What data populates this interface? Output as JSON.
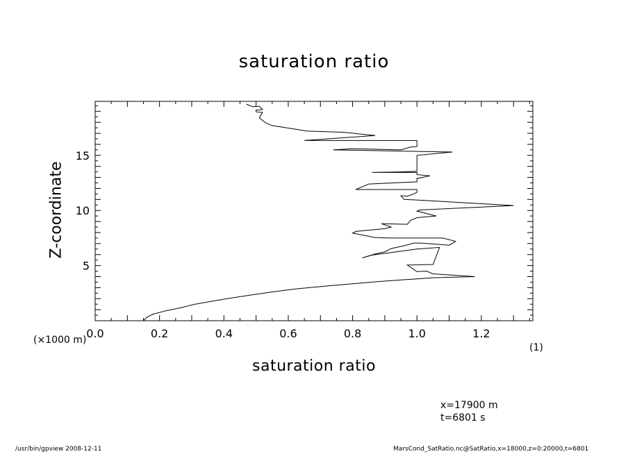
{
  "chart_data": {
    "type": "line",
    "title": "saturation ratio",
    "xlabel": "saturation ratio",
    "ylabel": "Z-coordinate",
    "x_unit": "(1)",
    "y_unit": "(×1000 m)",
    "xlim": [
      0.0,
      1.36
    ],
    "ylim": [
      0.0,
      19.9
    ],
    "x_ticks": [
      0.0,
      0.2,
      0.4,
      0.6,
      0.8,
      1.0,
      1.2
    ],
    "x_tick_labels": [
      "0.0",
      "0.2",
      "0.4",
      "0.6",
      "0.8",
      "1.0",
      "1.2"
    ],
    "y_ticks": [
      5,
      10,
      15
    ],
    "y_tick_labels": [
      "5",
      "10",
      "15"
    ],
    "grid": false,
    "series": [
      {
        "x": [
          0.15,
          0.16,
          0.18,
          0.22,
          0.27,
          0.31,
          0.37,
          0.43,
          0.5,
          0.56,
          0.63,
          0.72,
          0.8,
          0.88,
          0.95,
          1.0,
          1.05,
          1.18,
          1.05,
          1.03,
          1.0,
          0.99,
          0.98,
          0.97,
          1.05,
          1.07,
          1.0,
          0.86,
          0.83,
          0.87,
          0.9,
          0.92,
          0.96,
          0.99,
          1.01,
          1.1,
          1.12,
          1.08,
          1.0,
          0.91,
          0.87,
          0.8,
          0.81,
          0.9,
          0.92,
          0.89,
          0.97,
          0.98,
          1.0,
          1.06,
          1.0,
          1.01,
          1.3,
          1.0,
          0.96,
          0.95,
          0.97,
          0.99,
          1.0,
          1.0,
          0.81,
          0.85,
          1.0,
          1.0,
          1.04,
          1.0,
          1.0,
          0.86,
          0.95,
          1.0,
          1.0,
          1.11,
          0.74,
          0.8,
          0.95,
          0.98,
          1.0,
          1.0,
          0.65,
          0.87,
          0.77,
          0.66,
          0.55,
          0.53,
          0.51,
          0.52,
          0.5,
          0.5,
          0.52,
          0.51,
          0.49,
          0.47
        ],
        "y": [
          0.0,
          0.3,
          0.6,
          0.9,
          1.2,
          1.5,
          1.8,
          2.1,
          2.4,
          2.65,
          2.9,
          3.15,
          3.35,
          3.55,
          3.7,
          3.8,
          3.9,
          4.0,
          4.25,
          4.5,
          4.45,
          4.65,
          4.85,
          5.05,
          5.1,
          6.65,
          6.5,
          5.95,
          5.7,
          6.05,
          6.25,
          6.55,
          6.8,
          7.05,
          7.05,
          6.85,
          7.2,
          7.5,
          7.5,
          7.5,
          7.55,
          7.95,
          8.1,
          8.35,
          8.5,
          8.8,
          8.75,
          9.1,
          9.35,
          9.5,
          9.95,
          10.05,
          10.45,
          10.95,
          11.0,
          11.35,
          11.3,
          11.5,
          11.65,
          11.9,
          11.9,
          12.4,
          12.6,
          12.9,
          13.15,
          13.25,
          13.45,
          13.45,
          13.5,
          13.55,
          15.0,
          15.3,
          15.5,
          15.6,
          15.5,
          15.75,
          15.8,
          16.35,
          16.35,
          16.8,
          17.1,
          17.2,
          17.7,
          17.95,
          18.4,
          18.9,
          18.95,
          19.1,
          19.15,
          19.45,
          19.4,
          19.65
        ]
      }
    ]
  },
  "annotations": {
    "x_info": "x=17900  m",
    "t_info": "t=6801  s"
  },
  "footer": {
    "left": "/usr/bin/gpview   2008-12-11",
    "right": "MarsCond_SatRatio.nc@SatRatio,x=18000,z=0:20000,t=6801"
  }
}
